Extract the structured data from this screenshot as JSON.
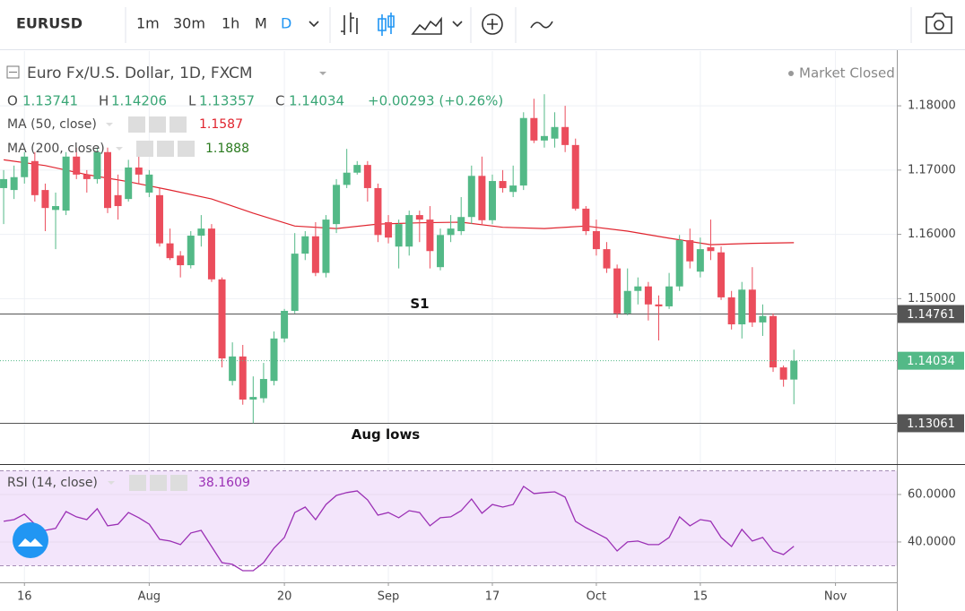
{
  "toolbar": {
    "symbol": "EURUSD",
    "intervals": [
      "1m",
      "30m",
      "1h",
      "M",
      "D"
    ]
  },
  "chart_data": {
    "type": "candlestick",
    "title": "Euro Fx/U.S. Dollar, 1D, FXCM",
    "status": "Market Closed",
    "ohlc_labels": [
      "O",
      "H",
      "L",
      "C"
    ],
    "change": "+0.00293 (+0.26%)",
    "up_color": "#53b987",
    "down_color": "#eb4d5c",
    "last_price_color": "#53b987",
    "open": [
      1.1672,
      1.1669,
      1.1689,
      1.1714,
      1.1669,
      1.1638,
      1.1637,
      1.1721,
      1.1693,
      1.1686,
      1.1728,
      1.1661,
      1.1655,
      1.1704,
      1.1665,
      1.1661,
      1.1586,
      1.1567,
      1.1552,
      1.1598,
      1.1609,
      1.153,
      1.1372,
      1.141,
      1.1343,
      1.1345,
      1.1372,
      1.1438,
      1.1481,
      1.157,
      1.1597,
      1.154,
      1.1616,
      1.1677,
      1.1696,
      1.1708,
      1.1672,
      1.1619,
      1.1581,
      1.1581,
      1.163,
      1.1623,
      1.1549,
      1.1599,
      1.1605,
      1.1627,
      1.1691,
      1.1622,
      1.1683,
      1.1666,
      1.1676,
      1.1781,
      1.1746,
      1.1749,
      1.1767,
      1.1739,
      1.164,
      1.1605,
      1.1577,
      1.1547,
      1.1477,
      1.1512,
      1.1519,
      1.1491,
      1.1488,
      1.1519,
      1.1591,
      1.1542,
      1.158,
      1.1572,
      1.1502,
      1.146,
      1.1514,
      1.1463,
      1.1473,
      1.1393,
      1.13741
    ],
    "high": [
      1.17,
      1.1707,
      1.1728,
      1.1728,
      1.1679,
      1.1665,
      1.1728,
      1.1735,
      1.17,
      1.1735,
      1.1735,
      1.1693,
      1.1716,
      1.1742,
      1.17,
      1.1672,
      1.1609,
      1.1574,
      1.1605,
      1.163,
      1.1616,
      1.1533,
      1.1432,
      1.1428,
      1.1379,
      1.14,
      1.1449,
      1.1484,
      1.1602,
      1.1605,
      1.1619,
      1.163,
      1.1686,
      1.1733,
      1.1714,
      1.1714,
      1.1679,
      1.163,
      1.1623,
      1.1637,
      1.1637,
      1.1644,
      1.1609,
      1.163,
      1.1658,
      1.1707,
      1.1721,
      1.1693,
      1.17,
      1.1707,
      1.179,
      1.1811,
      1.1818,
      1.179,
      1.18,
      1.1749,
      1.1644,
      1.1623,
      1.1588,
      1.1553,
      1.1547,
      1.1533,
      1.1526,
      1.1505,
      1.154,
      1.1599,
      1.1609,
      1.1595,
      1.1623,
      1.1581,
      1.1512,
      1.1526,
      1.1549,
      1.1491,
      1.1477,
      1.1396,
      1.14206
    ],
    "low": [
      1.1616,
      1.1655,
      1.1679,
      1.1651,
      1.1605,
      1.1577,
      1.163,
      1.1686,
      1.1665,
      1.1679,
      1.1633,
      1.1623,
      1.1651,
      1.1679,
      1.1658,
      1.1581,
      1.156,
      1.1533,
      1.1547,
      1.1581,
      1.1526,
      1.1393,
      1.1365,
      1.1335,
      1.1306,
      1.1338,
      1.1365,
      1.1432,
      1.1477,
      1.156,
      1.1535,
      1.1533,
      1.1602,
      1.1672,
      1.1693,
      1.1651,
      1.1588,
      1.1586,
      1.1547,
      1.1567,
      1.1588,
      1.1547,
      1.1544,
      1.1588,
      1.1599,
      1.1616,
      1.1616,
      1.1616,
      1.1665,
      1.1658,
      1.1669,
      1.1742,
      1.1735,
      1.1735,
      1.1728,
      1.1637,
      1.1599,
      1.1567,
      1.154,
      1.147,
      1.1474,
      1.1491,
      1.1466,
      1.1435,
      1.1484,
      1.1512,
      1.1547,
      1.1533,
      1.156,
      1.1498,
      1.1452,
      1.1438,
      1.1456,
      1.1442,
      1.1386,
      1.1363,
      1.13357
    ],
    "close": [
      1.1686,
      1.1689,
      1.1721,
      1.1661,
      1.1641,
      1.1644,
      1.1721,
      1.1693,
      1.1686,
      1.1728,
      1.1641,
      1.1644,
      1.1704,
      1.1693,
      1.1693,
      1.1586,
      1.1563,
      1.1552,
      1.1598,
      1.1609,
      1.153,
      1.1407,
      1.141,
      1.1343,
      1.1347,
      1.1375,
      1.1438,
      1.1481,
      1.157,
      1.1597,
      1.154,
      1.1623,
      1.1677,
      1.1696,
      1.1708,
      1.1672,
      1.1599,
      1.1595,
      1.1616,
      1.163,
      1.1623,
      1.1574,
      1.1599,
      1.1609,
      1.1627,
      1.1691,
      1.1622,
      1.1683,
      1.1672,
      1.1676,
      1.1781,
      1.1746,
      1.1753,
      1.1767,
      1.1739,
      1.164,
      1.1605,
      1.1577,
      1.1547,
      1.1477,
      1.1512,
      1.1519,
      1.1491,
      1.1488,
      1.1519,
      1.1591,
      1.1558,
      1.1577,
      1.1574,
      1.1502,
      1.146,
      1.1514,
      1.1463,
      1.1473,
      1.1393,
      1.1374,
      1.14034
    ],
    "xlim": [
      -0.35,
      85.9
    ],
    "xticks": [
      {
        "value": 2,
        "label": "16"
      },
      {
        "value": 14,
        "label": "Aug"
      },
      {
        "value": 27,
        "label": "20"
      },
      {
        "value": 37,
        "label": "Sep"
      },
      {
        "value": 47,
        "label": "17"
      },
      {
        "value": 57,
        "label": "Oct"
      },
      {
        "value": 67,
        "label": "15"
      },
      {
        "value": 80,
        "label": "Nov"
      }
    ],
    "ylim": [
      1.1244,
      1.1881
    ],
    "yticks": [
      {
        "value": 1.15,
        "label": "1.15000"
      },
      {
        "value": 1.16,
        "label": "1.16000"
      },
      {
        "value": 1.17,
        "label": "1.17000"
      },
      {
        "value": 1.18,
        "label": "1.18000"
      }
    ],
    "grid": true,
    "ma50": {
      "name": "MA (50, close)",
      "color": "#e0242e",
      "x": [
        0,
        4,
        8,
        12,
        16,
        20,
        24,
        28,
        32,
        36,
        40,
        44,
        48,
        52,
        56,
        60,
        64,
        68,
        72,
        76
      ],
      "values": [
        1.1716,
        1.1707,
        1.1693,
        1.1682,
        1.1669,
        1.1655,
        1.1633,
        1.1613,
        1.1609,
        1.1616,
        1.1618,
        1.1619,
        1.1611,
        1.1609,
        1.1613,
        1.1605,
        1.1594,
        1.1584,
        1.1586,
        1.1587
      ]
    },
    "ma200": {
      "name": "MA (200, close)",
      "color": "#2a7a1f",
      "value": 1.1888
    },
    "levels": [
      {
        "label": "S1",
        "value": 1.14761
      },
      {
        "label": "Aug lows",
        "value": 1.13061
      }
    ],
    "rsi": {
      "name": "RSI (14, close)",
      "color": "#9b30b5",
      "band": [
        30,
        70
      ],
      "ylim": [
        23,
        71.3
      ],
      "yticks": [
        {
          "value": 40,
          "label": "40.0000"
        },
        {
          "value": 60,
          "label": "60.0000"
        }
      ],
      "values": [
        48.7,
        49.4,
        51.7,
        47.5,
        44.9,
        45.7,
        52.8,
        50.6,
        49.4,
        54.0,
        46.8,
        47.5,
        52.4,
        50.2,
        47.5,
        41.1,
        40.4,
        38.9,
        43.8,
        44.9,
        38.1,
        31.3,
        30.6,
        27.9,
        27.9,
        31.3,
        37.4,
        41.9,
        52.4,
        54.7,
        49.4,
        55.8,
        59.6,
        60.8,
        61.5,
        57.7,
        51.3,
        52.4,
        50.2,
        53.2,
        52.4,
        46.8,
        50.2,
        50.6,
        53.2,
        58.1,
        52.1,
        55.8,
        54.7,
        55.8,
        63.4,
        60.4,
        60.8,
        61.1,
        58.9,
        48.7,
        46.0,
        43.8,
        41.5,
        36.2,
        40.0,
        40.4,
        38.9,
        38.9,
        41.9,
        50.6,
        46.8,
        49.4,
        48.7,
        41.9,
        38.1,
        45.3,
        40.4,
        41.9,
        36.2,
        34.7,
        38.1609
      ]
    }
  }
}
